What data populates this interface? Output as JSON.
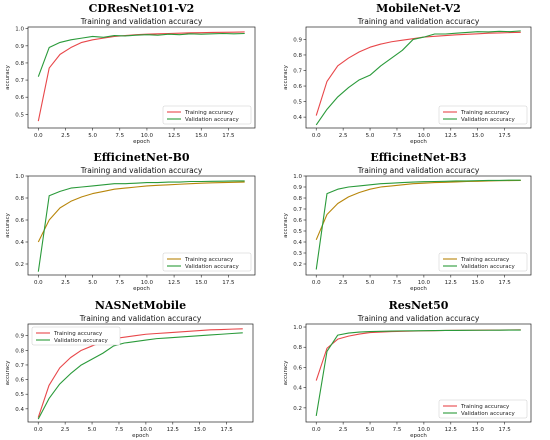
{
  "chart_data": [
    {
      "type": "line",
      "model_title": "CDResNet101-V2",
      "title": "Training and validation accuracy",
      "xlabel": "epoch",
      "ylabel": "accuracy",
      "xlim": [
        -0.95,
        19.95
      ],
      "ylim": [
        0.42,
        1.01
      ],
      "xticks": [
        0.0,
        2.5,
        5.0,
        7.5,
        10.0,
        12.5,
        15.0,
        17.5
      ],
      "xtick_labels": [
        "0.0",
        "2.5",
        "5.0",
        "7.5",
        "10.0",
        "12.5",
        "15.0",
        "17.5"
      ],
      "yticks": [
        0.5,
        0.6,
        0.7,
        0.8,
        0.9,
        1.0
      ],
      "ytick_labels": [
        "0.5",
        "0.6",
        "0.7",
        "0.8",
        "0.9",
        "1.0"
      ],
      "legend_position": "bottom-right",
      "x": [
        0,
        1,
        2,
        3,
        4,
        5,
        6,
        7,
        8,
        9,
        10,
        11,
        12,
        13,
        14,
        15,
        16,
        17,
        18,
        19
      ],
      "series": [
        {
          "name": "Training accuracy",
          "color": "#e8474a",
          "values": [
            0.46,
            0.77,
            0.85,
            0.89,
            0.92,
            0.935,
            0.945,
            0.955,
            0.96,
            0.965,
            0.968,
            0.97,
            0.972,
            0.974,
            0.976,
            0.977,
            0.978,
            0.979,
            0.98,
            0.981
          ]
        },
        {
          "name": "Validation accuracy",
          "color": "#2a9a3a",
          "values": [
            0.72,
            0.89,
            0.92,
            0.935,
            0.945,
            0.955,
            0.95,
            0.96,
            0.958,
            0.962,
            0.965,
            0.962,
            0.968,
            0.965,
            0.97,
            0.968,
            0.97,
            0.972,
            0.97,
            0.972
          ]
        }
      ]
    },
    {
      "type": "line",
      "model_title": "MobileNet-V2",
      "title": "Training and validation accuracy",
      "xlabel": "epoch",
      "ylabel": "accuracy",
      "xlim": [
        -0.95,
        19.95
      ],
      "ylim": [
        0.33,
        0.98
      ],
      "xticks": [
        0.0,
        2.5,
        5.0,
        7.5,
        10.0,
        12.5,
        15.0,
        17.5
      ],
      "xtick_labels": [
        "0.0",
        "2.5",
        "5.0",
        "7.5",
        "10.0",
        "12.5",
        "15.0",
        "17.5"
      ],
      "yticks": [
        0.4,
        0.5,
        0.6,
        0.7,
        0.8,
        0.9
      ],
      "ytick_labels": [
        "0.4",
        "0.5",
        "0.6",
        "0.7",
        "0.8",
        "0.9"
      ],
      "legend_position": "bottom-right",
      "x": [
        0,
        1,
        2,
        3,
        4,
        5,
        6,
        7,
        8,
        9,
        10,
        11,
        12,
        13,
        14,
        15,
        16,
        17,
        18,
        19
      ],
      "series": [
        {
          "name": "Training accuracy",
          "color": "#e8474a",
          "values": [
            0.41,
            0.63,
            0.73,
            0.78,
            0.82,
            0.85,
            0.87,
            0.885,
            0.895,
            0.905,
            0.915,
            0.92,
            0.925,
            0.93,
            0.933,
            0.936,
            0.94,
            0.942,
            0.944,
            0.946
          ]
        },
        {
          "name": "Validation accuracy",
          "color": "#2a9a3a",
          "values": [
            0.35,
            0.45,
            0.53,
            0.59,
            0.64,
            0.67,
            0.73,
            0.78,
            0.83,
            0.9,
            0.915,
            0.935,
            0.935,
            0.94,
            0.945,
            0.95,
            0.948,
            0.952,
            0.95,
            0.955
          ]
        }
      ]
    },
    {
      "type": "line",
      "model_title": "EfficinetNet-B0",
      "title": "Training and validation accuracy",
      "xlabel": "epoch",
      "ylabel": "accuracy",
      "xlim": [
        -0.95,
        19.95
      ],
      "ylim": [
        0.1,
        1.0
      ],
      "xticks": [
        0.0,
        2.5,
        5.0,
        7.5,
        10.0,
        12.5,
        15.0,
        17.5
      ],
      "xtick_labels": [
        "0.0",
        "2.5",
        "5.0",
        "7.5",
        "10.0",
        "12.5",
        "15.0",
        "17.5"
      ],
      "yticks": [
        0.2,
        0.4,
        0.6,
        0.8,
        1.0
      ],
      "ytick_labels": [
        "0.2",
        "0.4",
        "0.6",
        "0.8",
        "1.0"
      ],
      "legend_position": "bottom-right",
      "x": [
        0,
        1,
        2,
        3,
        4,
        5,
        6,
        7,
        8,
        9,
        10,
        11,
        12,
        13,
        14,
        15,
        16,
        17,
        18,
        19
      ],
      "series": [
        {
          "name": "Training accuracy",
          "color": "#b8860b",
          "values": [
            0.4,
            0.6,
            0.71,
            0.77,
            0.81,
            0.84,
            0.86,
            0.88,
            0.89,
            0.9,
            0.91,
            0.915,
            0.92,
            0.925,
            0.93,
            0.935,
            0.938,
            0.94,
            0.943,
            0.945
          ]
        },
        {
          "name": "Validation accuracy",
          "color": "#2a9a3a",
          "values": [
            0.13,
            0.82,
            0.86,
            0.89,
            0.9,
            0.91,
            0.92,
            0.93,
            0.93,
            0.935,
            0.94,
            0.94,
            0.945,
            0.945,
            0.95,
            0.95,
            0.952,
            0.953,
            0.955,
            0.955
          ]
        }
      ]
    },
    {
      "type": "line",
      "model_title": "EfficinetNet-B3",
      "title": "Training and validation accuracy",
      "xlabel": "epoch",
      "ylabel": "accuracy",
      "xlim": [
        -0.95,
        19.95
      ],
      "ylim": [
        0.1,
        1.0
      ],
      "xticks": [
        0.0,
        2.5,
        5.0,
        7.5,
        10.0,
        12.5,
        15.0,
        17.5
      ],
      "xtick_labels": [
        "0.0",
        "2.5",
        "5.0",
        "7.5",
        "10.0",
        "12.5",
        "15.0",
        "17.5"
      ],
      "yticks": [
        0.2,
        0.3,
        0.4,
        0.5,
        0.6,
        0.7,
        0.8,
        0.9,
        1.0
      ],
      "ytick_labels": [
        "0.2",
        "0.3",
        "0.4",
        "0.5",
        "0.6",
        "0.7",
        "0.8",
        "0.9",
        "1.0"
      ],
      "legend_position": "bottom-right",
      "x": [
        0,
        1,
        2,
        3,
        4,
        5,
        6,
        7,
        8,
        9,
        10,
        11,
        12,
        13,
        14,
        15,
        16,
        17,
        18,
        19
      ],
      "series": [
        {
          "name": "Training accuracy",
          "color": "#b8860b",
          "values": [
            0.42,
            0.65,
            0.75,
            0.81,
            0.85,
            0.88,
            0.9,
            0.91,
            0.92,
            0.93,
            0.935,
            0.94,
            0.943,
            0.946,
            0.95,
            0.952,
            0.955,
            0.957,
            0.958,
            0.96
          ]
        },
        {
          "name": "Validation accuracy",
          "color": "#2a9a3a",
          "values": [
            0.15,
            0.84,
            0.88,
            0.9,
            0.91,
            0.92,
            0.93,
            0.935,
            0.94,
            0.945,
            0.948,
            0.95,
            0.952,
            0.955,
            0.955,
            0.958,
            0.96,
            0.96,
            0.962,
            0.962
          ]
        }
      ]
    },
    {
      "type": "line",
      "model_title": "NASNetMobile",
      "title": "Training and validation accuracy",
      "xlabel": "epoch",
      "ylabel": "accuracy",
      "xlim": [
        -0.95,
        19.95
      ],
      "ylim": [
        0.31,
        0.98
      ],
      "xticks": [
        0.0,
        2.5,
        5.0,
        7.5,
        10.0,
        12.5,
        15.0,
        17.5
      ],
      "xtick_labels": [
        "0.0",
        "2.5",
        "5.0",
        "7.5",
        "10.0",
        "12.5",
        "15.0",
        "17.5"
      ],
      "yticks": [
        0.4,
        0.5,
        0.6,
        0.7,
        0.8,
        0.9
      ],
      "ytick_labels": [
        "0.4",
        "0.5",
        "0.6",
        "0.7",
        "0.8",
        "0.9"
      ],
      "legend_position": "top-left",
      "x": [
        0,
        1,
        2,
        3,
        4,
        5,
        6,
        7,
        8,
        9,
        10,
        11,
        12,
        13,
        14,
        15,
        16,
        17,
        18,
        19
      ],
      "series": [
        {
          "name": "Training accuracy",
          "color": "#e8474a",
          "values": [
            0.34,
            0.56,
            0.68,
            0.75,
            0.8,
            0.83,
            0.86,
            0.88,
            0.89,
            0.9,
            0.91,
            0.915,
            0.92,
            0.925,
            0.93,
            0.935,
            0.94,
            0.942,
            0.945,
            0.947
          ]
        },
        {
          "name": "Validation accuracy",
          "color": "#2a9a3a",
          "values": [
            0.33,
            0.47,
            0.57,
            0.64,
            0.7,
            0.74,
            0.78,
            0.83,
            0.85,
            0.86,
            0.87,
            0.88,
            0.885,
            0.89,
            0.895,
            0.9,
            0.905,
            0.91,
            0.915,
            0.92
          ]
        }
      ]
    },
    {
      "type": "line",
      "model_title": "ResNet50",
      "title": "Training and validation accuracy",
      "xlabel": "epoch",
      "ylabel": "accuracy",
      "xlim": [
        -0.95,
        19.95
      ],
      "ylim": [
        0.06,
        1.03
      ],
      "xticks": [
        0.0,
        2.5,
        5.0,
        7.5,
        10.0,
        12.5,
        15.0,
        17.5
      ],
      "xtick_labels": [
        "0.0",
        "2.5",
        "5.0",
        "7.5",
        "10.0",
        "12.5",
        "15.0",
        "17.5"
      ],
      "yticks": [
        0.2,
        0.4,
        0.6,
        0.8,
        1.0
      ],
      "ytick_labels": [
        "0.2",
        "0.4",
        "0.6",
        "0.8",
        "1.0"
      ],
      "legend_position": "bottom-right",
      "x": [
        0,
        1,
        2,
        3,
        4,
        5,
        6,
        7,
        8,
        9,
        10,
        11,
        12,
        13,
        14,
        15,
        16,
        17,
        18,
        19
      ],
      "series": [
        {
          "name": "Training accuracy",
          "color": "#e8474a",
          "values": [
            0.47,
            0.79,
            0.88,
            0.91,
            0.93,
            0.945,
            0.95,
            0.955,
            0.958,
            0.96,
            0.962,
            0.964,
            0.966,
            0.967,
            0.968,
            0.969,
            0.97,
            0.97,
            0.971,
            0.972
          ]
        },
        {
          "name": "Validation accuracy",
          "color": "#2a9a3a",
          "values": [
            0.12,
            0.76,
            0.92,
            0.94,
            0.95,
            0.955,
            0.958,
            0.96,
            0.962,
            0.963,
            0.964,
            0.965,
            0.966,
            0.966,
            0.967,
            0.968,
            0.968,
            0.969,
            0.97,
            0.97
          ]
        }
      ]
    }
  ]
}
